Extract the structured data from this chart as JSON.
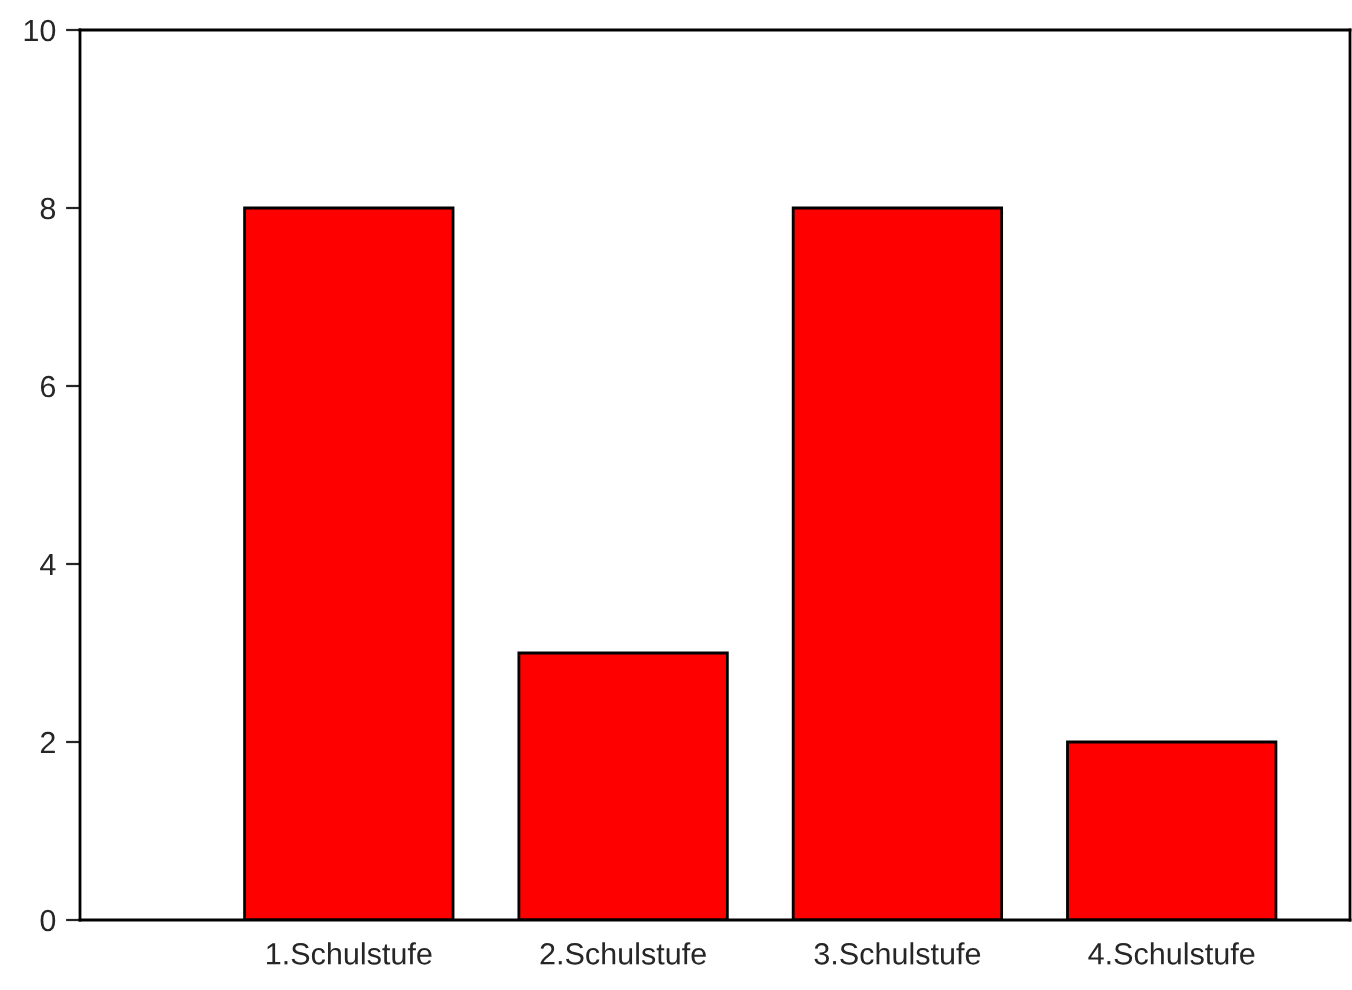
{
  "chart_data": {
    "type": "bar",
    "categories": [
      "1.Schulstufe",
      "2.Schulstufe",
      "3.Schulstufe",
      "4.Schulstufe"
    ],
    "values": [
      8,
      3,
      8,
      2
    ],
    "color": "#ff0000",
    "ylim": [
      0,
      10
    ],
    "yticks": [
      0,
      2,
      4,
      6,
      8,
      10
    ],
    "grid": false
  }
}
